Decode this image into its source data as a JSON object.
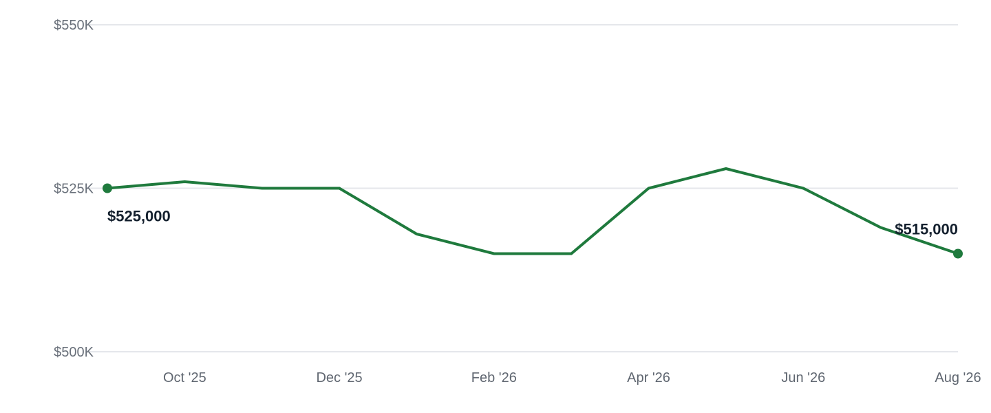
{
  "chart_data": {
    "type": "line",
    "x": [
      "Sep '25",
      "Oct '25",
      "Nov '25",
      "Dec '25",
      "Jan '26",
      "Feb '26",
      "Mar '26",
      "Apr '26",
      "May '26",
      "Jun '26",
      "Jul '26",
      "Aug '26"
    ],
    "series": [
      {
        "values": [
          525000,
          526000,
          525000,
          525000,
          518000,
          515000,
          515000,
          525000,
          528000,
          525000,
          519000,
          515000
        ],
        "color": "#1f7a3d"
      }
    ],
    "ylim": [
      500000,
      550000
    ],
    "y_ticks": [
      {
        "value": 550000,
        "label": "$550K"
      },
      {
        "value": 525000,
        "label": "$525K"
      },
      {
        "value": 500000,
        "label": "$500K"
      }
    ],
    "x_ticks": [
      {
        "label": "Oct '25"
      },
      {
        "label": "Dec '25"
      },
      {
        "label": "Feb '26"
      },
      {
        "label": "Apr '26"
      },
      {
        "label": "Jun '26"
      },
      {
        "label": "Aug '26"
      }
    ],
    "data_labels": [
      {
        "index": 0,
        "label": "$525,000"
      },
      {
        "index": 11,
        "label": "$515,000"
      }
    ],
    "grid": true,
    "colors": {
      "line": "#1f7a3d",
      "grid": "#e5e7eb",
      "tick_text": "#69707a",
      "label_text": "#14202e"
    }
  }
}
